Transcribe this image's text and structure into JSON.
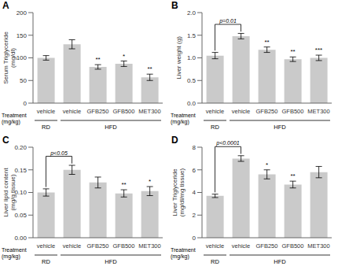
{
  "chart_data": [
    {
      "type": "bar",
      "title": "A",
      "ylabel": "Serum Triglyceride\n(mg/dl)",
      "categories": [
        "vehicle",
        "vehicle",
        "GFB250",
        "GFB500",
        "MET300"
      ],
      "values": [
        100,
        130,
        80,
        87,
        57
      ],
      "errors": [
        5,
        10,
        5,
        6,
        7
      ],
      "color": "#cacaca",
      "ylim": [
        0,
        200
      ],
      "yticks": [
        0,
        50,
        100,
        150,
        200
      ],
      "annotations": {
        "significance": [
          null,
          null,
          "**",
          "*",
          "**"
        ],
        "treatment_label": "Treatment\n(mg/kg)",
        "groups": [
          {
            "label": "RD",
            "from": 0,
            "to": 0
          },
          {
            "label": "HFD",
            "from": 1,
            "to": 4
          }
        ]
      }
    },
    {
      "type": "bar",
      "title": "B",
      "ylabel": "Liver weight (g)",
      "categories": [
        "vehicle",
        "vehicle",
        "GFB250",
        "GFB500",
        "MET300"
      ],
      "values": [
        1.05,
        1.48,
        1.18,
        0.97,
        1.0
      ],
      "errors": [
        0.07,
        0.06,
        0.06,
        0.05,
        0.06
      ],
      "color": "#cacaca",
      "ylim": [
        0.0,
        2.0
      ],
      "yticks": [
        {
          "value": 0,
          "label": "0.0"
        },
        0.5,
        {
          "value": 1,
          "label": "1.0"
        },
        1.5,
        {
          "value": 2,
          "label": "2.0"
        }
      ],
      "annotations": {
        "significance": [
          null,
          null,
          "**",
          "**",
          "***"
        ],
        "bracket": {
          "from": 0,
          "to": 1,
          "label": "p=0.01"
        },
        "treatment_label": "Treatment\n(mg/kg)",
        "groups": [
          {
            "label": "RD",
            "from": 0,
            "to": 0
          },
          {
            "label": "HFD",
            "from": 1,
            "to": 4
          }
        ]
      }
    },
    {
      "type": "bar",
      "title": "C",
      "ylabel": "Liver lipid content\n(mg/g tissue)",
      "categories": [
        "vehicle",
        "vehicle",
        "GFB250",
        "GFB500",
        "MET300"
      ],
      "values": [
        0.1,
        0.15,
        0.122,
        0.098,
        0.103
      ],
      "errors": [
        0.008,
        0.01,
        0.012,
        0.008,
        0.01
      ],
      "color": "#cacaca",
      "ylim": [
        0.0,
        0.2
      ],
      "yticks": [
        {
          "value": 0,
          "label": "0.00"
        },
        0.05,
        {
          "value": 0.1,
          "label": "0.10"
        },
        0.15,
        {
          "value": 0.2,
          "label": "0.20"
        }
      ],
      "annotations": {
        "significance": [
          null,
          null,
          null,
          "**",
          "*"
        ],
        "bracket": {
          "from": 0,
          "to": 1,
          "label": "p<0.05"
        },
        "treatment_label": "Treatment\n(mg/kg)",
        "groups": [
          {
            "label": "RD",
            "from": 0,
            "to": 0
          },
          {
            "label": "HFD",
            "from": 1,
            "to": 4
          }
        ]
      }
    },
    {
      "type": "bar",
      "title": "D",
      "ylabel": "Liver Triglyceride\n(mg/dl/mg tissue)",
      "categories": [
        "vehicle",
        "vehicle",
        "GFB250",
        "GFB500",
        "MET300"
      ],
      "values": [
        3.7,
        7.0,
        5.6,
        4.7,
        5.8
      ],
      "errors": [
        0.15,
        0.25,
        0.4,
        0.3,
        0.5
      ],
      "color": "#cacaca",
      "ylim": [
        0,
        8
      ],
      "yticks": [
        0,
        2,
        4,
        6,
        8
      ],
      "annotations": {
        "significance": [
          null,
          null,
          "*",
          "**",
          null
        ],
        "bracket": {
          "from": 0,
          "to": 1,
          "label": "p<0.0001"
        },
        "treatment_label": "Treatment\n(mg/kg)",
        "groups": [
          {
            "label": "RD",
            "from": 0,
            "to": 0
          },
          {
            "label": "HFD",
            "from": 1,
            "to": 4
          }
        ]
      }
    }
  ]
}
